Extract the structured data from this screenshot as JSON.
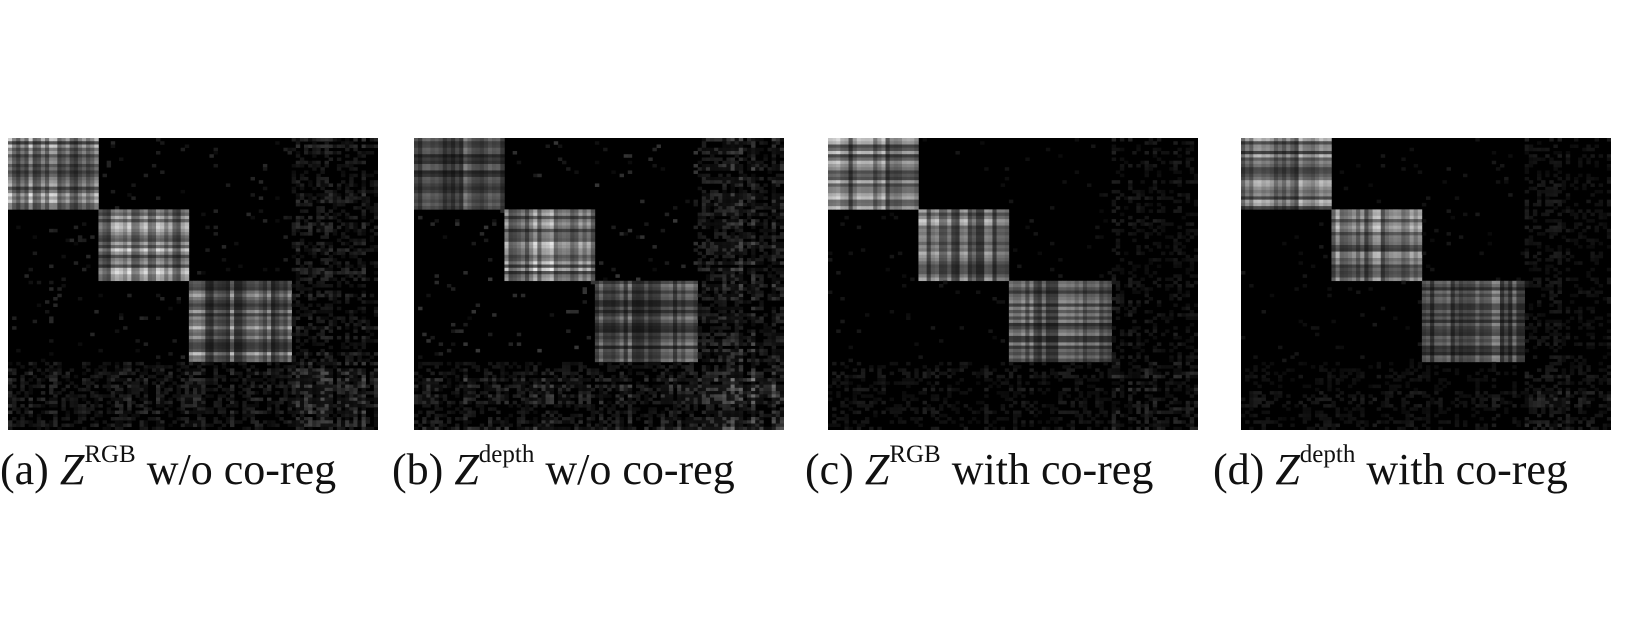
{
  "figure": {
    "panels": [
      {
        "id": "a",
        "label": "(a)",
        "symbol": "Z",
        "superscript": "RGB",
        "suffix": "w/o co-reg",
        "blocks": [
          0.62,
          0.62,
          0.52
        ],
        "offdiag": 0.16
      },
      {
        "id": "b",
        "label": "(b)",
        "symbol": "Z",
        "superscript": "depth",
        "suffix": "w/o co-reg",
        "blocks": [
          0.4,
          0.66,
          0.38
        ],
        "offdiag": 0.22
      },
      {
        "id": "c",
        "label": "(c)",
        "symbol": "Z",
        "superscript": "RGB",
        "suffix": "with co-reg",
        "blocks": [
          0.62,
          0.56,
          0.42
        ],
        "offdiag": 0.1
      },
      {
        "id": "d",
        "label": "(d)",
        "symbol": "Z",
        "superscript": "depth",
        "suffix": "with co-reg",
        "blocks": [
          0.6,
          0.56,
          0.42
        ],
        "offdiag": 0.1
      }
    ]
  }
}
